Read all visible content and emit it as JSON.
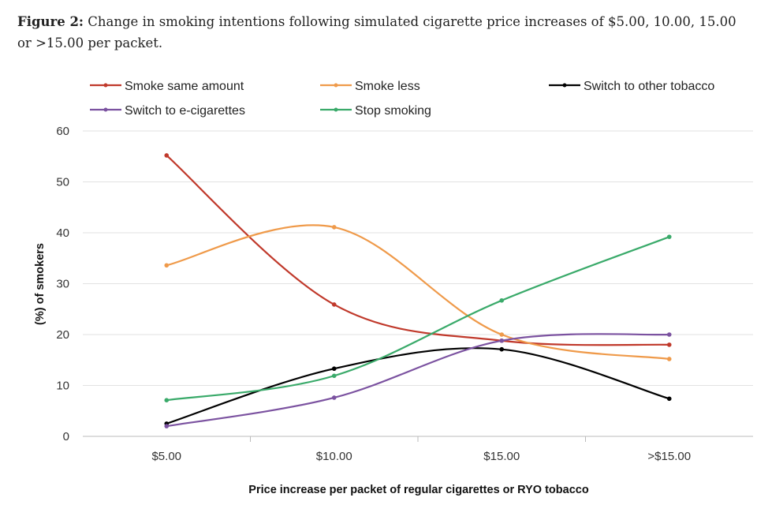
{
  "caption": {
    "label": "Figure 2:",
    "text": " Change in smoking intentions following simulated cigarette price increases of $5.00, 10.00, 15.00 or >15.00 per packet."
  },
  "chart_data": {
    "type": "line",
    "smooth": true,
    "categories": [
      "$5.00",
      "$10.00",
      "$15.00",
      ">$15.00"
    ],
    "xlabel": "Price increase per packet of regular cigarettes or RYO tobacco",
    "ylabel": "(%) of smokers",
    "ylim": [
      0,
      60
    ],
    "yticks": [
      0,
      10,
      20,
      30,
      40,
      50,
      60
    ],
    "grid": true,
    "legend_position": "top",
    "series": [
      {
        "name": "Smoke same amount",
        "color": "#c0392b",
        "values": [
          55.2,
          25.9,
          18.8,
          18.0
        ]
      },
      {
        "name": "Smoke less",
        "color": "#ef9a4a",
        "values": [
          33.6,
          41.1,
          20.0,
          15.2
        ]
      },
      {
        "name": "Switch to other tobacco",
        "color": "#000000",
        "values": [
          2.5,
          13.3,
          17.1,
          7.4
        ]
      },
      {
        "name": "Switch to e-cigarettes",
        "color": "#7b52a0",
        "values": [
          2.0,
          7.6,
          18.8,
          20.0
        ]
      },
      {
        "name": "Stop smoking",
        "color": "#3aaa6a",
        "values": [
          7.1,
          11.9,
          26.7,
          39.2
        ]
      }
    ]
  }
}
